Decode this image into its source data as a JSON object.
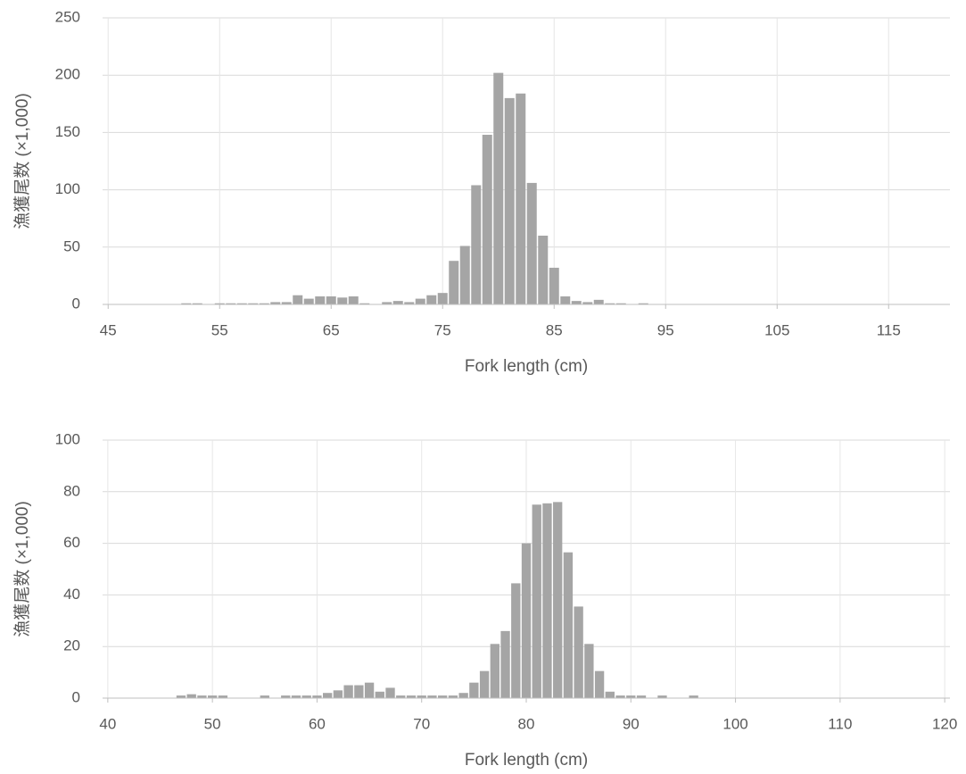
{
  "chart_data": [
    {
      "type": "bar",
      "xlabel": "Fork length (cm)",
      "ylabel": "漁獲尾数 (×1,000)",
      "color": "#a5a5a5",
      "grid": true,
      "x": [
        45,
        46,
        47,
        48,
        49,
        50,
        51,
        52,
        53,
        54,
        55,
        56,
        57,
        58,
        59,
        60,
        61,
        62,
        63,
        64,
        65,
        66,
        67,
        68,
        69,
        70,
        71,
        72,
        73,
        74,
        75,
        76,
        77,
        78,
        79,
        80,
        81,
        82,
        83,
        84,
        85,
        86,
        87,
        88,
        89,
        90,
        91,
        92,
        93,
        94,
        95,
        96,
        97,
        98,
        99,
        100,
        101,
        102,
        103,
        104,
        105,
        106,
        107,
        108,
        109,
        110,
        111,
        112,
        113,
        114,
        115,
        116,
        117,
        118,
        119,
        120
      ],
      "values": [
        0,
        0,
        0,
        0,
        0,
        0,
        0,
        1,
        1,
        0,
        1,
        1,
        1,
        1,
        1,
        2,
        2,
        8,
        5,
        7,
        7,
        6,
        7,
        1,
        0,
        2,
        3,
        2,
        5,
        8,
        10,
        38,
        51,
        104,
        148,
        202,
        180,
        184,
        106,
        60,
        32,
        7,
        3,
        2,
        4,
        1,
        1,
        0,
        1,
        0,
        0,
        0,
        0,
        0,
        0,
        0,
        0,
        0,
        0,
        0,
        0,
        0,
        0,
        0,
        0,
        0,
        0,
        0,
        0,
        0,
        0,
        0,
        0,
        0,
        0,
        0
      ],
      "xlim": [
        44.5,
        120.5
      ],
      "xticks": [
        45,
        55,
        65,
        75,
        85,
        95,
        105,
        115
      ],
      "ylim": [
        0,
        250
      ],
      "yticks": [
        0,
        50,
        100,
        150,
        200,
        250
      ]
    },
    {
      "type": "bar",
      "xlabel": "Fork length (cm)",
      "ylabel": "漁獲尾数 (×1,000)",
      "color": "#a5a5a5",
      "grid": true,
      "x": [
        40,
        41,
        42,
        43,
        44,
        45,
        46,
        47,
        48,
        49,
        50,
        51,
        52,
        53,
        54,
        55,
        56,
        57,
        58,
        59,
        60,
        61,
        62,
        63,
        64,
        65,
        66,
        67,
        68,
        69,
        70,
        71,
        72,
        73,
        74,
        75,
        76,
        77,
        78,
        79,
        80,
        81,
        82,
        83,
        84,
        85,
        86,
        87,
        88,
        89,
        90,
        91,
        92,
        93,
        94,
        95,
        96,
        97,
        98,
        99,
        100,
        101,
        102,
        103,
        104,
        105,
        106,
        107,
        108,
        109,
        110,
        111,
        112,
        113,
        114,
        115,
        116,
        117,
        118,
        119,
        120
      ],
      "values": [
        0,
        0,
        0,
        0,
        0,
        0,
        0,
        1,
        1.5,
        1,
        1,
        1,
        0,
        0,
        0,
        1,
        0,
        1,
        1,
        1,
        1,
        2,
        3,
        5,
        5,
        6,
        2.5,
        4,
        1,
        1,
        1,
        1,
        1,
        1,
        2,
        6,
        10.5,
        21,
        26,
        44.5,
        60,
        75,
        75.5,
        76,
        56.5,
        35.5,
        21,
        10.5,
        2.5,
        1,
        1,
        1,
        0,
        1,
        0,
        0,
        1,
        0,
        0,
        0,
        0,
        0,
        0,
        0,
        0,
        0,
        0,
        0,
        0,
        0,
        0,
        0,
        0,
        0,
        0,
        0,
        0,
        0,
        0,
        0,
        0
      ],
      "xlim": [
        39.5,
        120.5
      ],
      "xticks": [
        40,
        50,
        60,
        70,
        80,
        90,
        100,
        110,
        120
      ],
      "ylim": [
        0,
        100
      ],
      "yticks": [
        0,
        20,
        40,
        60,
        80,
        100
      ]
    }
  ]
}
